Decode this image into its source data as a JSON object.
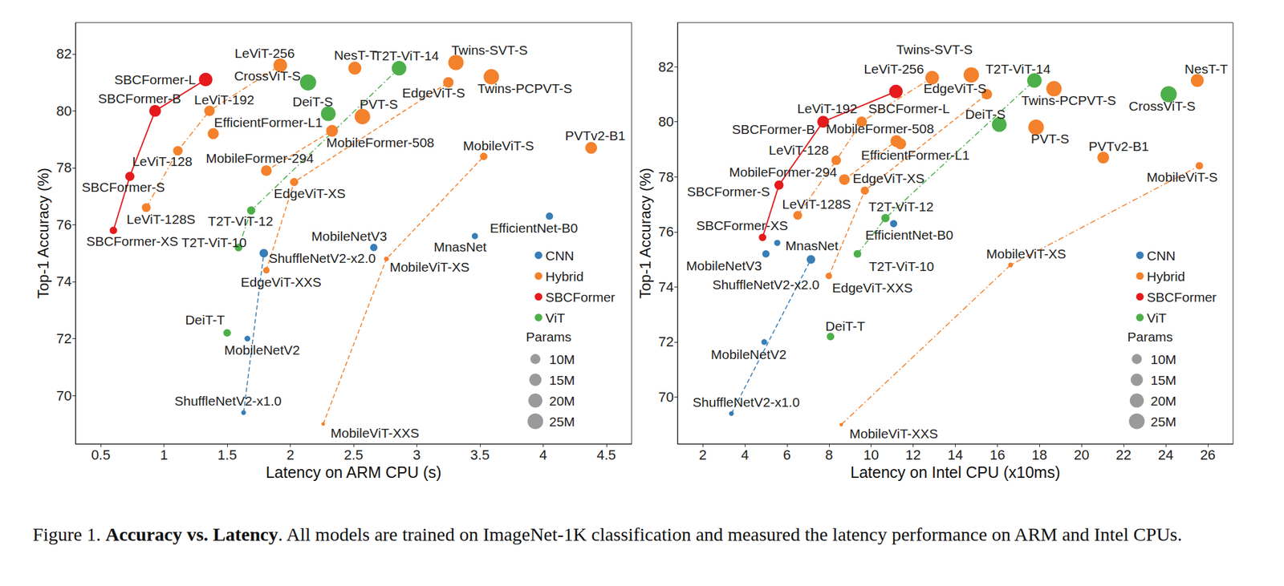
{
  "chart_data": [
    {
      "type": "scatter",
      "xlabel": "Latency on ARM CPU (s)",
      "ylabel": "Top-1 Accuracy (%)",
      "xlim": [
        0.3,
        4.7
      ],
      "xticks": [
        0.5,
        1,
        1.5,
        2,
        2.5,
        3,
        3.5,
        4,
        4.5
      ],
      "ylim": [
        68.3,
        83.1
      ],
      "yticks": [
        70,
        72,
        74,
        76,
        78,
        80,
        82
      ],
      "grid": false,
      "legend": "center right",
      "marker": "circle",
      "series": [
        {
          "name": "CNN",
          "color": "#377eb8",
          "labels": [
            "ShuffleNetV2-x1.0",
            "MobileNetV2",
            "ShuffleNetV2-x2.0",
            "MobileNetV3",
            "MnasNet",
            "EfficientNet-B0"
          ],
          "x": [
            1.63,
            1.66,
            1.79,
            2.66,
            3.46,
            4.05
          ],
          "values": [
            69.4,
            72,
            75,
            75.2,
            75.6,
            76.3
          ],
          "params": [
            2.3,
            3.4,
            7.4,
            5.4,
            3.9,
            5.3
          ]
        },
        {
          "name": "Hybrid",
          "color": "#f4812c",
          "labels": [
            "LeViT-128S",
            "LeViT-128",
            "LeViT-192",
            "LeViT-256",
            "EdgeViT-XXS",
            "EdgeViT-XS",
            "EdgeViT-S",
            "MobileViT-XXS",
            "MobileViT-XS",
            "MobileViT-S",
            "MobileFormer-294",
            "MobileFormer-508",
            "EfficientFormer-L1",
            "PVT-S",
            "PVTv2-B1",
            "NesT-T",
            "Twins-SVT-S",
            "Twins-PCPVT-S"
          ],
          "x": [
            0.86,
            1.11,
            1.36,
            1.92,
            1.81,
            2.03,
            3.25,
            2.26,
            2.76,
            3.53,
            1.81,
            2.33,
            1.39,
            2.57,
            4.38,
            2.51,
            3.31,
            3.59
          ],
          "values": [
            76.6,
            78.6,
            80,
            81.6,
            74.4,
            77.5,
            81,
            69,
            74.8,
            78.4,
            77.9,
            79.3,
            79.2,
            79.8,
            78.7,
            81.5,
            81.7,
            81.2
          ],
          "params": [
            7.8,
            9.2,
            11,
            18.9,
            4.1,
            6.7,
            11.1,
            1.3,
            2.3,
            5.6,
            11.4,
            14,
            12.3,
            24.5,
            14,
            17,
            24,
            24.1
          ]
        },
        {
          "name": "SBCFormer",
          "color": "#e41a1c",
          "labels": [
            "SBCFormer-XS",
            "SBCFormer-S",
            "SBCFormer-B",
            "SBCFormer-L"
          ],
          "x": [
            0.6,
            0.73,
            0.93,
            1.33
          ],
          "values": [
            75.8,
            77.7,
            80,
            81.1
          ],
          "params": [
            5.6,
            8.5,
            13.8,
            18.5
          ]
        },
        {
          "name": "ViT",
          "color": "#4daf4a",
          "labels": [
            "DeiT-T",
            "DeiT-S",
            "T2T-ViT-10",
            "T2T-ViT-12",
            "T2T-ViT-14",
            "CrossViT-S"
          ],
          "x": [
            1.5,
            2.3,
            1.59,
            1.69,
            2.86,
            2.14
          ],
          "values": [
            72.2,
            79.9,
            75.2,
            76.5,
            81.5,
            81
          ],
          "params": [
            5.7,
            22.1,
            5.9,
            6.9,
            21.5,
            26.7
          ]
        }
      ],
      "lines": [
        {
          "points": [
            "SBCFormer-XS",
            "SBCFormer-S",
            "SBCFormer-B",
            "SBCFormer-L"
          ],
          "line_style": "solid"
        },
        {
          "points": [
            "LeViT-128S",
            "LeViT-128",
            "LeViT-192",
            "LeViT-256"
          ],
          "line_style": "dashdot"
        },
        {
          "points": [
            "T2T-ViT-10",
            "T2T-ViT-12",
            "T2T-ViT-14"
          ],
          "line_style": "dashdot"
        },
        {
          "points": [
            "ShuffleNetV2-x1.0",
            "ShuffleNetV2-x2.0"
          ],
          "line_style": "dashed"
        },
        {
          "points": [
            "EdgeViT-XXS",
            "EdgeViT-XS",
            "EdgeViT-S"
          ],
          "line_style": "dashed"
        },
        {
          "points": [
            "MobileViT-XXS",
            "MobileViT-XS",
            "MobileViT-S"
          ],
          "line_style": "dashed"
        },
        {
          "points": [
            "MobileFormer-294",
            "MobileFormer-508"
          ],
          "line_style": "dashed"
        }
      ],
      "size_legend": {
        "title": "Params",
        "ticks": [
          {
            "value": 10,
            "label": "10M"
          },
          {
            "value": 15,
            "label": "15M"
          },
          {
            "value": 20,
            "label": "20M"
          },
          {
            "value": 25,
            "label": "25M"
          }
        ]
      }
    },
    {
      "type": "scatter",
      "xlabel": "Latency on Intel CPU (x10ms)",
      "ylabel": "Top-1 Accuracy (%)",
      "xlim": [
        0.8,
        27.2
      ],
      "xticks": [
        2,
        4,
        6,
        8,
        10,
        12,
        14,
        16,
        18,
        20,
        22,
        24,
        26
      ],
      "ylim": [
        68.3,
        83.6
      ],
      "yticks": [
        70,
        72,
        74,
        76,
        78,
        80,
        82
      ],
      "grid": false,
      "legend": "center right",
      "marker": "circle",
      "series": [
        {
          "name": "CNN",
          "color": "#377eb8",
          "labels": [
            "ShuffleNetV2-x1.0",
            "MobileNetV2",
            "ShuffleNetV2-x2.0",
            "MobileNetV3",
            "MnasNet",
            "EfficientNet-B0"
          ],
          "x": [
            3.36,
            4.92,
            7.14,
            5,
            5.54,
            11.07
          ],
          "values": [
            69.4,
            72,
            75,
            75.2,
            75.6,
            76.3
          ],
          "params": [
            2.3,
            3.4,
            7.4,
            5.4,
            3.9,
            5.3
          ]
        },
        {
          "name": "Hybrid",
          "color": "#f4812c",
          "labels": [
            "LeViT-128S",
            "LeViT-128",
            "LeViT-192",
            "LeViT-256",
            "EdgeViT-XXS",
            "EdgeViT-XS",
            "EdgeViT-S",
            "MobileViT-XXS",
            "MobileViT-XS",
            "MobileViT-S",
            "MobileFormer-294",
            "MobileFormer-508",
            "EfficientFormer-L1",
            "PVT-S",
            "PVTv2-B1",
            "NesT-T",
            "Twins-SVT-S",
            "Twins-PCPVT-S"
          ],
          "x": [
            6.51,
            8.34,
            9.55,
            12.9,
            7.99,
            9.7,
            15.5,
            8.58,
            16.63,
            25.6,
            8.73,
            11.2,
            11.4,
            17.84,
            21.03,
            25.5,
            14.76,
            18.69
          ],
          "values": [
            76.6,
            78.6,
            80,
            81.6,
            74.4,
            77.5,
            81,
            69,
            74.8,
            78.4,
            77.9,
            79.3,
            79.2,
            79.8,
            78.7,
            81.5,
            81.7,
            81.2
          ],
          "params": [
            7.8,
            9.2,
            11,
            18.9,
            4.1,
            6.7,
            11.1,
            1.3,
            2.3,
            5.6,
            11.4,
            14,
            12.3,
            24.5,
            14,
            17,
            24,
            24.1
          ]
        },
        {
          "name": "SBCFormer",
          "color": "#e41a1c",
          "labels": [
            "SBCFormer-XS",
            "SBCFormer-S",
            "SBCFormer-B",
            "SBCFormer-L"
          ],
          "x": [
            4.84,
            5.62,
            7.72,
            11.18
          ],
          "values": [
            75.8,
            77.7,
            80,
            81.1
          ],
          "params": [
            5.6,
            8.5,
            13.8,
            18.5
          ]
        },
        {
          "name": "ViT",
          "color": "#4daf4a",
          "labels": [
            "DeiT-T",
            "DeiT-S",
            "T2T-ViT-10",
            "T2T-ViT-12",
            "T2T-ViT-14",
            "CrossViT-S"
          ],
          "x": [
            8.07,
            16.09,
            9.35,
            10.68,
            17.76,
            24.14
          ],
          "values": [
            72.2,
            79.9,
            75.2,
            76.5,
            81.5,
            81
          ],
          "params": [
            5.7,
            22.1,
            5.9,
            6.9,
            21.5,
            26.7
          ]
        }
      ],
      "lines": [
        {
          "points": [
            "SBCFormer-XS",
            "SBCFormer-S",
            "SBCFormer-B",
            "SBCFormer-L"
          ],
          "line_style": "solid"
        },
        {
          "points": [
            "LeViT-128S",
            "LeViT-128",
            "LeViT-192",
            "LeViT-256"
          ],
          "line_style": "dashdot"
        },
        {
          "points": [
            "T2T-ViT-10",
            "T2T-ViT-12",
            "T2T-ViT-14"
          ],
          "line_style": "dashdot"
        },
        {
          "points": [
            "ShuffleNetV2-x1.0",
            "ShuffleNetV2-x2.0"
          ],
          "line_style": "dashed"
        },
        {
          "points": [
            "EdgeViT-XXS",
            "EdgeViT-XS",
            "EdgeViT-S"
          ],
          "line_style": "dashed"
        },
        {
          "points": [
            "MobileViT-XXS",
            "MobileViT-XS",
            "MobileViT-S"
          ],
          "line_style": "dashdot"
        },
        {
          "points": [
            "MobileFormer-294",
            "MobileFormer-508"
          ],
          "line_style": "dashed"
        }
      ],
      "size_legend": {
        "title": "Params",
        "ticks": [
          {
            "value": 10,
            "label": "10M"
          },
          {
            "value": 15,
            "label": "15M"
          },
          {
            "value": 20,
            "label": "20M"
          },
          {
            "value": 25,
            "label": "25M"
          }
        ]
      }
    }
  ],
  "caption": {
    "number": "Figure 1.",
    "title": "Accuracy vs. Latency",
    "text": ". All models are trained on ImageNet-1K classification and measured the latency performance on ARM and Intel CPUs."
  }
}
